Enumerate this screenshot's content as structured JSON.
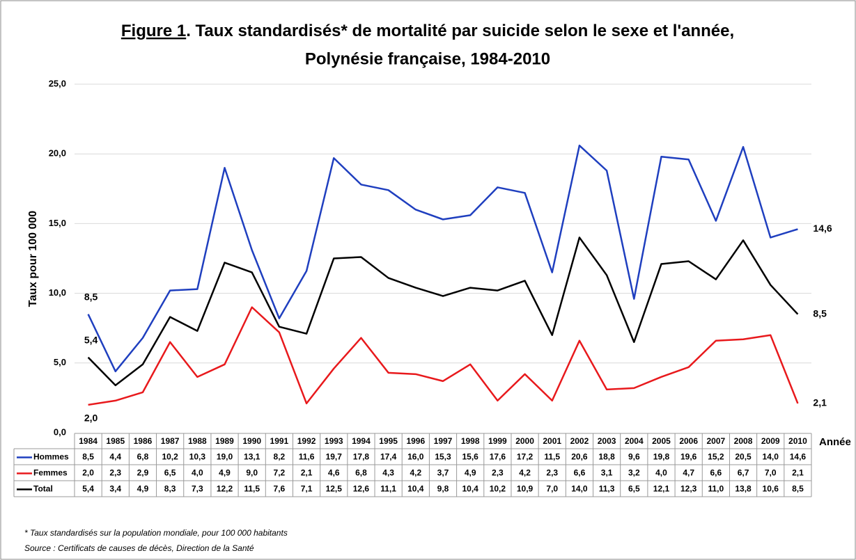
{
  "chart_data": {
    "type": "line",
    "title": [
      "Figure 1",
      ". Taux standardisés* de mortalité par suicide selon le sexe et l'année,",
      "Polynésie française, 1984-2010"
    ],
    "y_label": "Taux pour 100 000",
    "x_label": "Année",
    "categories": [
      "1984",
      "1985",
      "1986",
      "1987",
      "1988",
      "1989",
      "1990",
      "1991",
      "1992",
      "1993",
      "1994",
      "1995",
      "1996",
      "1997",
      "1998",
      "1999",
      "2000",
      "2001",
      "2002",
      "2003",
      "2004",
      "2005",
      "2006",
      "2007",
      "2008",
      "2009",
      "2010"
    ],
    "series": [
      {
        "name": "Hommes",
        "color": "#1f3fbf",
        "values": [
          8.5,
          4.4,
          6.8,
          10.2,
          10.3,
          19.0,
          13.1,
          8.2,
          11.6,
          19.7,
          17.8,
          17.4,
          16.0,
          15.3,
          15.6,
          17.6,
          17.2,
          11.5,
          20.6,
          18.8,
          9.6,
          19.8,
          19.6,
          15.2,
          20.5,
          14.0,
          14.6
        ],
        "value_labels": [
          "8,5",
          "4,4",
          "6,8",
          "10,2",
          "10,3",
          "19,0",
          "13,1",
          "8,2",
          "11,6",
          "19,7",
          "17,8",
          "17,4",
          "16,0",
          "15,3",
          "15,6",
          "17,6",
          "17,2",
          "11,5",
          "20,6",
          "18,8",
          "9,6",
          "19,8",
          "19,6",
          "15,2",
          "20,5",
          "14,0",
          "14,6"
        ]
      },
      {
        "name": "Femmes",
        "color": "#e8191c",
        "values": [
          2.0,
          2.3,
          2.9,
          6.5,
          4.0,
          4.9,
          9.0,
          7.2,
          2.1,
          4.6,
          6.8,
          4.3,
          4.2,
          3.7,
          4.9,
          2.3,
          4.2,
          2.3,
          6.6,
          3.1,
          3.2,
          4.0,
          4.7,
          6.6,
          6.7,
          7.0,
          2.1
        ],
        "value_labels": [
          "2,0",
          "2,3",
          "2,9",
          "6,5",
          "4,0",
          "4,9",
          "9,0",
          "7,2",
          "2,1",
          "4,6",
          "6,8",
          "4,3",
          "4,2",
          "3,7",
          "4,9",
          "2,3",
          "4,2",
          "2,3",
          "6,6",
          "3,1",
          "3,2",
          "4,0",
          "4,7",
          "6,6",
          "6,7",
          "7,0",
          "2,1"
        ]
      },
      {
        "name": "Total",
        "color": "#000000",
        "values": [
          5.4,
          3.4,
          4.9,
          8.3,
          7.3,
          12.2,
          11.5,
          7.6,
          7.1,
          12.5,
          12.6,
          11.1,
          10.4,
          9.8,
          10.4,
          10.2,
          10.9,
          7.0,
          14.0,
          11.3,
          6.5,
          12.1,
          12.3,
          11.0,
          13.8,
          10.6,
          8.5
        ],
        "value_labels": [
          "5,4",
          "3,4",
          "4,9",
          "8,3",
          "7,3",
          "12,2",
          "11,5",
          "7,6",
          "7,1",
          "12,5",
          "12,6",
          "11,1",
          "10,4",
          "9,8",
          "10,4",
          "10,2",
          "10,9",
          "7,0",
          "14,0",
          "11,3",
          "6,5",
          "12,1",
          "12,3",
          "11,0",
          "13,8",
          "10,6",
          "8,5"
        ]
      }
    ],
    "ylim": [
      0,
      25
    ],
    "yticks": [
      {
        "value": 0,
        "label": "0,0"
      },
      {
        "value": 5,
        "label": "5,0"
      },
      {
        "value": 10,
        "label": "10,0"
      },
      {
        "value": 15,
        "label": "15,0"
      },
      {
        "value": 20,
        "label": "20,0"
      },
      {
        "value": 25,
        "label": "25,0"
      }
    ],
    "grid": true,
    "footnotes": [
      "* Taux standardisés sur la population mondiale, pour 100 000 habitants",
      "Source : Certificats de causes de décès, Direction de la Santé"
    ]
  }
}
